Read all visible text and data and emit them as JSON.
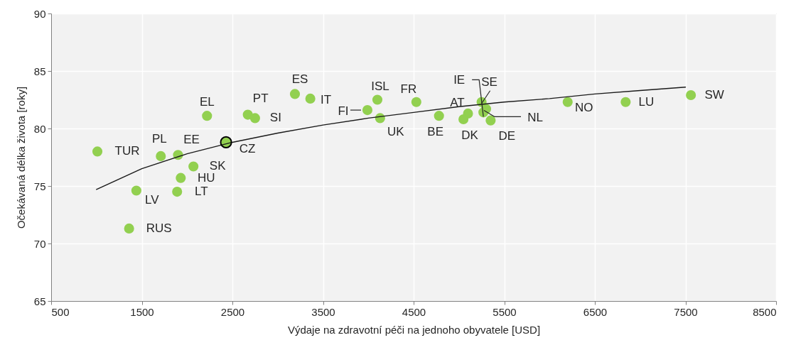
{
  "chart_data": {
    "type": "scatter",
    "xlabel": "Výdaje na zdravotní péči na jednoho obyvatele [USD]",
    "ylabel": "Očekávaná délka života [roky]",
    "xlim": [
      500,
      8500
    ],
    "ylim": [
      65,
      90
    ],
    "xticks": [
      500,
      1500,
      2500,
      3500,
      4500,
      5500,
      6500,
      7500,
      8500
    ],
    "yticks": [
      65,
      70,
      75,
      80,
      85,
      90
    ],
    "grid": true,
    "marker": "circle",
    "series": [
      {
        "color": "#92d050",
        "x": [
          1010,
          1710,
          1900,
          2430,
          2070,
          1930,
          1890,
          1440,
          1360,
          2220,
          2670,
          2750,
          3190,
          3360,
          3990,
          4100,
          4130,
          4530,
          4780,
          5100,
          5050,
          5250,
          5300,
          5270,
          5350,
          6200,
          6840,
          7560
        ],
        "values": [
          78.0,
          77.6,
          77.7,
          78.8,
          76.7,
          75.7,
          74.5,
          74.6,
          71.3,
          81.1,
          81.2,
          80.9,
          83.0,
          82.6,
          81.6,
          82.5,
          80.9,
          82.3,
          81.1,
          81.3,
          80.8,
          82.3,
          81.7,
          81.4,
          80.7,
          82.3,
          82.3,
          82.9
        ]
      },
      {
        "type": "line",
        "color": "#1a1a1a",
        "line_style": "solid",
        "marker": "none",
        "x": [
          1000,
          1500,
          2000,
          2500,
          3000,
          3500,
          4000,
          4500,
          5000,
          5500,
          6000,
          6500,
          7000,
          7500
        ],
        "values": [
          74.7,
          76.5,
          77.8,
          78.8,
          79.6,
          80.3,
          80.9,
          81.4,
          81.9,
          82.3,
          82.6,
          83.0,
          83.3,
          83.6
        ]
      }
    ],
    "annotations": [
      {
        "text": "TUR",
        "x": 1010,
        "y": 78.0
      },
      {
        "text": "PL",
        "x": 1710,
        "y": 77.6
      },
      {
        "text": "EE",
        "x": 1900,
        "y": 77.7
      },
      {
        "text": "CZ",
        "x": 2430,
        "y": 78.8
      },
      {
        "text": "SK",
        "x": 2070,
        "y": 76.7
      },
      {
        "text": "HU",
        "x": 1930,
        "y": 75.7
      },
      {
        "text": "LT",
        "x": 1890,
        "y": 74.5
      },
      {
        "text": "LV",
        "x": 1440,
        "y": 74.6
      },
      {
        "text": "RUS",
        "x": 1360,
        "y": 71.3
      },
      {
        "text": "EL",
        "x": 2220,
        "y": 81.1
      },
      {
        "text": "PT",
        "x": 2670,
        "y": 81.2
      },
      {
        "text": "SI",
        "x": 2750,
        "y": 80.9
      },
      {
        "text": "ES",
        "x": 3190,
        "y": 83.0
      },
      {
        "text": "IT",
        "x": 3360,
        "y": 82.6
      },
      {
        "text": "FI",
        "x": 3990,
        "y": 81.6
      },
      {
        "text": "ISL",
        "x": 4100,
        "y": 82.5
      },
      {
        "text": "UK",
        "x": 4130,
        "y": 80.9
      },
      {
        "text": "FR",
        "x": 4530,
        "y": 82.3
      },
      {
        "text": "BE",
        "x": 4780,
        "y": 81.1
      },
      {
        "text": "AT",
        "x": 5100,
        "y": 81.3
      },
      {
        "text": "DK",
        "x": 5050,
        "y": 80.8
      },
      {
        "text": "SE",
        "x": 5250,
        "y": 82.3
      },
      {
        "text": "NL",
        "x": 5300,
        "y": 81.7
      },
      {
        "text": "IE",
        "x": 5270,
        "y": 81.4
      },
      {
        "text": "DE",
        "x": 5350,
        "y": 80.7
      },
      {
        "text": "NO",
        "x": 6200,
        "y": 82.3
      },
      {
        "text": "LU",
        "x": 6840,
        "y": 82.3
      },
      {
        "text": "SW",
        "x": 7560,
        "y": 82.9
      }
    ]
  }
}
